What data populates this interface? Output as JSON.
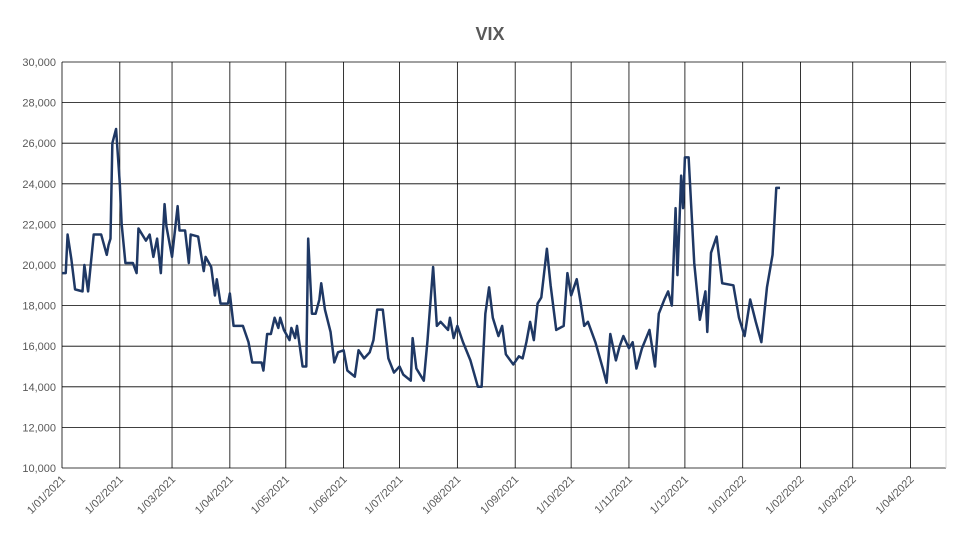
{
  "chart_data": {
    "type": "line",
    "title": "VIX",
    "color": "#1f3864",
    "grid": true,
    "ylim": [
      10000,
      30000
    ],
    "yticks": [
      {
        "value": 10000,
        "label": "10,000"
      },
      {
        "value": 12000,
        "label": "12,000"
      },
      {
        "value": 14000,
        "label": "14,000"
      },
      {
        "value": 16000,
        "label": "16,000"
      },
      {
        "value": 18000,
        "label": "18,000"
      },
      {
        "value": 20000,
        "label": "20,000"
      },
      {
        "value": 22000,
        "label": "22,000"
      },
      {
        "value": 24000,
        "label": "24,000"
      },
      {
        "value": 26000,
        "label": "26,000"
      },
      {
        "value": 28000,
        "label": "28,000"
      },
      {
        "value": 30000,
        "label": "30,000"
      }
    ],
    "xlim": [
      "2021-01-01",
      "2022-04-20"
    ],
    "xticks": [
      {
        "value": "2021-01-01",
        "label": "1/01/2021"
      },
      {
        "value": "2021-02-01",
        "label": "1/02/2021"
      },
      {
        "value": "2021-03-01",
        "label": "1/03/2021"
      },
      {
        "value": "2021-04-01",
        "label": "1/04/2021"
      },
      {
        "value": "2021-05-01",
        "label": "1/05/2021"
      },
      {
        "value": "2021-06-01",
        "label": "1/06/2021"
      },
      {
        "value": "2021-07-01",
        "label": "1/07/2021"
      },
      {
        "value": "2021-08-01",
        "label": "1/08/2021"
      },
      {
        "value": "2021-09-01",
        "label": "1/09/2021"
      },
      {
        "value": "2021-10-01",
        "label": "1/10/2021"
      },
      {
        "value": "2021-11-01",
        "label": "1/11/2021"
      },
      {
        "value": "2021-12-01",
        "label": "1/12/2021"
      },
      {
        "value": "2022-01-01",
        "label": "1/01/2022"
      },
      {
        "value": "2022-02-01",
        "label": "1/02/2022"
      },
      {
        "value": "2022-03-01",
        "label": "1/03/2022"
      },
      {
        "value": "2022-04-01",
        "label": "1/04/2022"
      }
    ],
    "x": [
      "2021-01-01",
      "2021-01-03",
      "2021-01-04",
      "2021-01-06",
      "2021-01-08",
      "2021-01-12",
      "2021-01-13",
      "2021-01-15",
      "2021-01-18",
      "2021-01-22",
      "2021-01-25",
      "2021-01-26",
      "2021-01-27",
      "2021-01-28",
      "2021-01-30",
      "2021-02-01",
      "2021-02-02",
      "2021-02-04",
      "2021-02-08",
      "2021-02-10",
      "2021-02-11",
      "2021-02-15",
      "2021-02-17",
      "2021-02-19",
      "2021-02-21",
      "2021-02-23",
      "2021-02-25",
      "2021-02-26",
      "2021-03-01",
      "2021-03-04",
      "2021-03-05",
      "2021-03-08",
      "2021-03-10",
      "2021-03-11",
      "2021-03-15",
      "2021-03-18",
      "2021-03-19",
      "2021-03-22",
      "2021-03-24",
      "2021-03-25",
      "2021-03-27",
      "2021-03-31",
      "2021-04-01",
      "2021-04-03",
      "2021-04-08",
      "2021-04-11",
      "2021-04-13",
      "2021-04-18",
      "2021-04-19",
      "2021-04-21",
      "2021-04-23",
      "2021-04-25",
      "2021-04-27",
      "2021-04-28",
      "2021-04-30",
      "2021-05-03",
      "2021-05-04",
      "2021-05-06",
      "2021-05-07",
      "2021-05-10",
      "2021-05-12",
      "2021-05-13",
      "2021-05-15",
      "2021-05-17",
      "2021-05-19",
      "2021-05-20",
      "2021-05-22",
      "2021-05-25",
      "2021-05-27",
      "2021-05-29",
      "2021-06-01",
      "2021-06-03",
      "2021-06-07",
      "2021-06-09",
      "2021-06-12",
      "2021-06-15",
      "2021-06-17",
      "2021-06-19",
      "2021-06-22",
      "2021-06-25",
      "2021-06-28",
      "2021-07-01",
      "2021-07-03",
      "2021-07-07",
      "2021-07-08",
      "2021-07-10",
      "2021-07-14",
      "2021-07-16",
      "2021-07-19",
      "2021-07-21",
      "2021-07-23",
      "2021-07-27",
      "2021-07-28",
      "2021-07-30",
      "2021-08-01",
      "2021-08-04",
      "2021-08-08",
      "2021-08-12",
      "2021-08-14",
      "2021-08-16",
      "2021-08-18",
      "2021-08-20",
      "2021-08-23",
      "2021-08-25",
      "2021-08-27",
      "2021-08-31",
      "2021-09-03",
      "2021-09-05",
      "2021-09-07",
      "2021-09-09",
      "2021-09-11",
      "2021-09-13",
      "2021-09-15",
      "2021-09-18",
      "2021-09-20",
      "2021-09-23",
      "2021-09-27",
      "2021-09-29",
      "2021-10-01",
      "2021-10-04",
      "2021-10-06",
      "2021-10-08",
      "2021-10-10",
      "2021-10-14",
      "2021-10-18",
      "2021-10-20",
      "2021-10-22",
      "2021-10-25",
      "2021-10-27",
      "2021-10-29",
      "2021-11-01",
      "2021-11-03",
      "2021-11-05",
      "2021-11-08",
      "2021-11-12",
      "2021-11-15",
      "2021-11-17",
      "2021-11-20",
      "2021-11-22",
      "2021-11-24",
      "2021-11-26",
      "2021-11-27",
      "2021-11-29",
      "2021-11-30",
      "2021-12-01",
      "2021-12-03",
      "2021-12-06",
      "2021-12-09",
      "2021-12-12",
      "2021-12-13",
      "2021-12-15",
      "2021-12-18",
      "2021-12-21",
      "2021-12-27",
      "2021-12-30",
      "2022-01-02",
      "2022-01-05",
      "2022-01-08",
      "2022-01-11",
      "2022-01-14",
      "2022-01-17",
      "2022-01-19",
      "2022-01-21"
    ],
    "series": [
      {
        "name": "VIX",
        "color": "#1f3864",
        "values": [
          19600,
          19600,
          21500,
          20300,
          18800,
          18700,
          20000,
          18700,
          21500,
          21500,
          20500,
          21000,
          21300,
          26000,
          26700,
          24000,
          22000,
          20100,
          20100,
          19600,
          21800,
          21200,
          21500,
          20400,
          21300,
          19600,
          23000,
          21900,
          20400,
          22900,
          21700,
          21700,
          20100,
          21500,
          21400,
          19700,
          20400,
          19900,
          18500,
          19300,
          18100,
          18100,
          18600,
          17000,
          17000,
          16200,
          15200,
          15200,
          14800,
          16600,
          16600,
          17400,
          16900,
          17400,
          16800,
          16300,
          16900,
          16400,
          17000,
          15000,
          15000,
          21300,
          17600,
          17600,
          18300,
          19100,
          17800,
          16700,
          15200,
          15700,
          15800,
          14800,
          14500,
          15800,
          15400,
          15700,
          16300,
          17800,
          17800,
          15400,
          14700,
          15000,
          14600,
          14300,
          16400,
          14900,
          14300,
          16300,
          19900,
          17000,
          17200,
          16800,
          17400,
          16400,
          17000,
          16200,
          15300,
          14000,
          14000,
          17600,
          18900,
          17400,
          16500,
          17000,
          15600,
          15100,
          15500,
          15400,
          16200,
          17200,
          16300,
          18100,
          18400,
          20800,
          19000,
          16800,
          17000,
          19600,
          18500,
          19300,
          18200,
          17000,
          17200,
          16200,
          14900,
          14200,
          16600,
          15300,
          16000,
          16500,
          15900,
          16200,
          14900,
          15900,
          16800,
          15000,
          17600,
          18300,
          18700,
          18000,
          22800,
          19500,
          24400,
          22800,
          25300,
          25300,
          20100,
          17300,
          18700,
          16700,
          20600,
          21400,
          19100,
          19000,
          17400,
          16500,
          18300,
          17200,
          16200,
          18900,
          20500,
          23800,
          23800
        ]
      }
    ]
  }
}
